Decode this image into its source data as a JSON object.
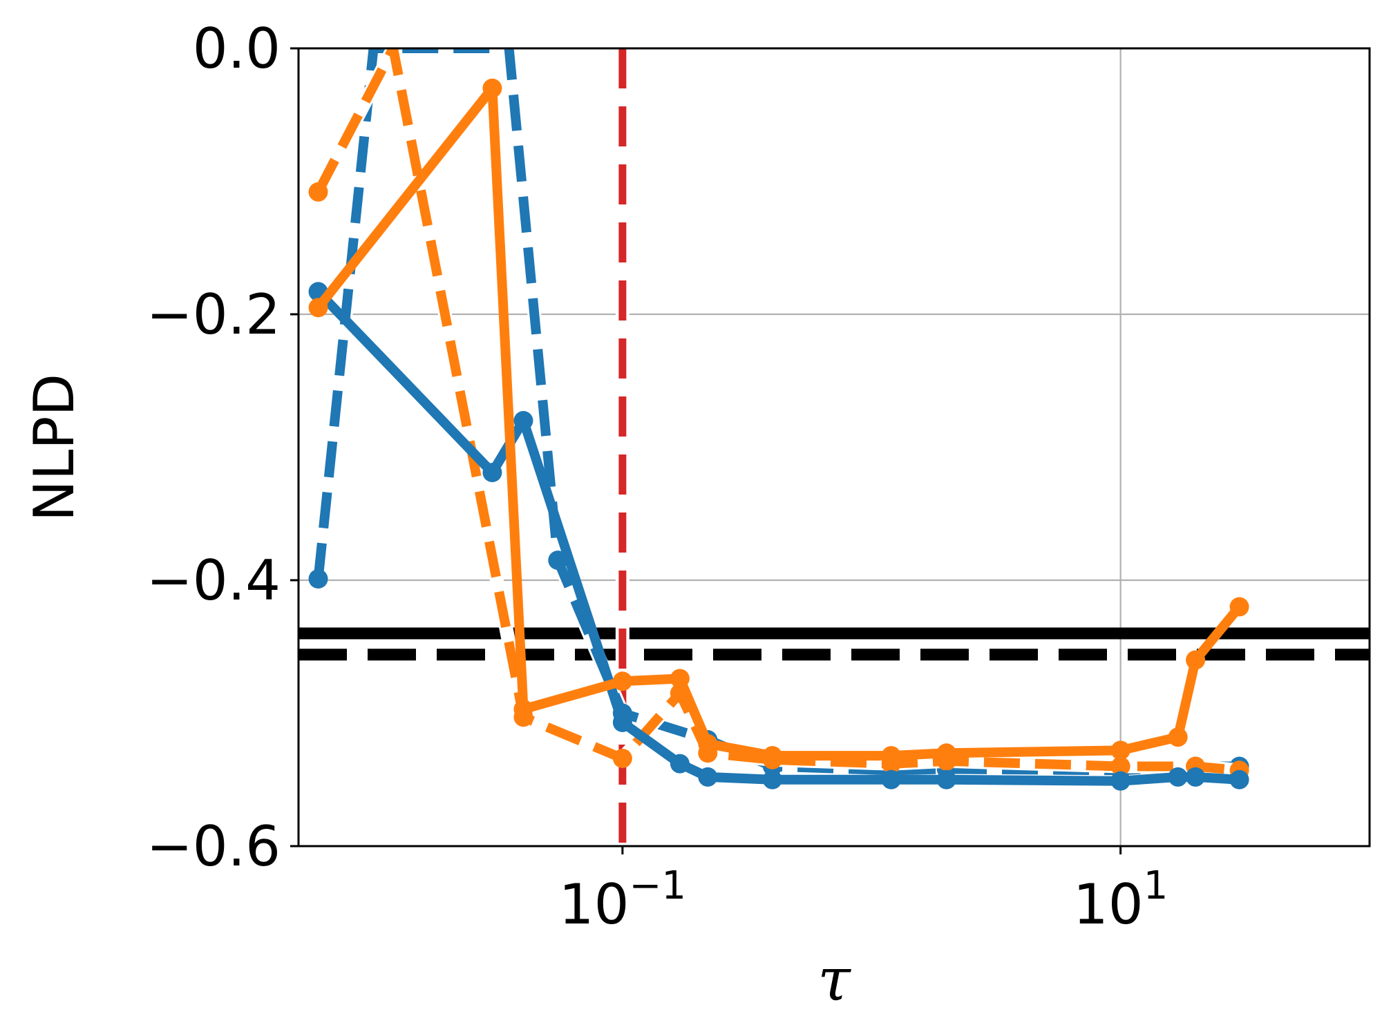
{
  "chart_data": {
    "type": "line",
    "xlabel": "τ",
    "ylabel": "NLPD",
    "xscale": "log",
    "xlim": [
      0.005,
      100
    ],
    "ylim": [
      -0.6,
      0.0
    ],
    "grid": true,
    "legend": "none",
    "xticks": [
      {
        "value": 0.1,
        "base": "10",
        "exp": "−1"
      },
      {
        "value": 10,
        "base": "10",
        "exp": "1"
      }
    ],
    "yticks": [
      {
        "value": 0.0,
        "label": "0.0"
      },
      {
        "value": -0.2,
        "label": "−0.2"
      },
      {
        "value": -0.4,
        "label": "−0.4"
      },
      {
        "value": -0.6,
        "label": "−0.6"
      }
    ],
    "colors": {
      "blue": "#1f77b4",
      "orange": "#ff7f0e",
      "red": "#d62728",
      "black": "#000000",
      "grid": "#b0b0b0"
    },
    "series": [
      {
        "color": "#1f77b4",
        "dash": "solid",
        "x": [
          0.006,
          0.03,
          0.04,
          0.1,
          0.17,
          0.22,
          0.4,
          1.2,
          2.0,
          10,
          17,
          20,
          30
        ],
        "y": [
          -0.183,
          -0.319,
          -0.28,
          -0.507,
          -0.538,
          -0.548,
          -0.55,
          -0.55,
          -0.55,
          -0.551,
          -0.548,
          -0.548,
          -0.55
        ]
      },
      {
        "color": "#1f77b4",
        "dash": "dashed",
        "x": [
          0.006,
          0.01,
          0.035,
          0.055,
          0.1,
          0.22,
          0.4,
          1.2,
          2.0,
          10,
          20,
          30
        ],
        "y": [
          -0.399,
          0.0,
          0.0,
          -0.385,
          -0.5,
          -0.52,
          -0.54,
          -0.543,
          -0.542,
          -0.543,
          -0.54,
          -0.54
        ]
      },
      {
        "color": "#ff7f0e",
        "dash": "solid",
        "x": [
          0.006,
          0.03,
          0.04,
          0.1,
          0.17,
          0.22,
          0.4,
          1.2,
          2.0,
          10,
          17,
          20,
          30
        ],
        "y": [
          -0.195,
          -0.03,
          -0.497,
          -0.476,
          -0.474,
          -0.523,
          -0.532,
          -0.532,
          -0.53,
          -0.528,
          -0.518,
          -0.46,
          -0.42
        ]
      },
      {
        "color": "#ff7f0e",
        "dash": "dashed",
        "x": [
          0.006,
          0.012,
          0.04,
          0.1,
          0.17,
          0.22,
          0.4,
          1.2,
          2.0,
          10,
          20,
          30
        ],
        "y": [
          -0.108,
          0.0,
          -0.503,
          -0.534,
          -0.485,
          -0.53,
          -0.535,
          -0.538,
          -0.536,
          -0.54,
          -0.54,
          -0.543
        ]
      }
    ],
    "hlines": [
      {
        "y": -0.44,
        "color": "#000000",
        "dash": "solid"
      },
      {
        "y": -0.456,
        "color": "#000000",
        "dash": "dashed"
      }
    ],
    "vlines": [
      {
        "x": 0.1,
        "color": "#d62728",
        "dash": "dashed"
      }
    ]
  }
}
